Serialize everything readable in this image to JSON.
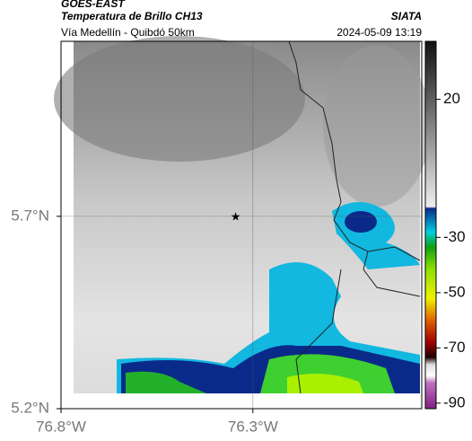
{
  "header": {
    "satellite": "GOES-EAST",
    "product": "Temperatura de Brillo CH13",
    "source": "SIATA",
    "route": "Vía Medellín - Quibdó 50km",
    "datetime": "2024-05-09 13:19"
  },
  "map": {
    "xlim": [
      -76.8,
      -75.86
    ],
    "ylim": [
      5.2,
      6.155
    ],
    "xticks": [
      {
        "value": -76.8,
        "label": "76.8°W"
      },
      {
        "value": -76.3,
        "label": "76.3°W"
      }
    ],
    "yticks": [
      {
        "value": 5.7,
        "label": "5.7°N"
      },
      {
        "value": 5.2,
        "label": "5.2°N"
      }
    ],
    "marker": {
      "lon": -76.345,
      "lat": 5.7
    }
  },
  "colorbar": {
    "lim": [
      -92,
      41
    ],
    "ticks": [
      20,
      -30,
      -50,
      -70,
      -90
    ]
  }
}
